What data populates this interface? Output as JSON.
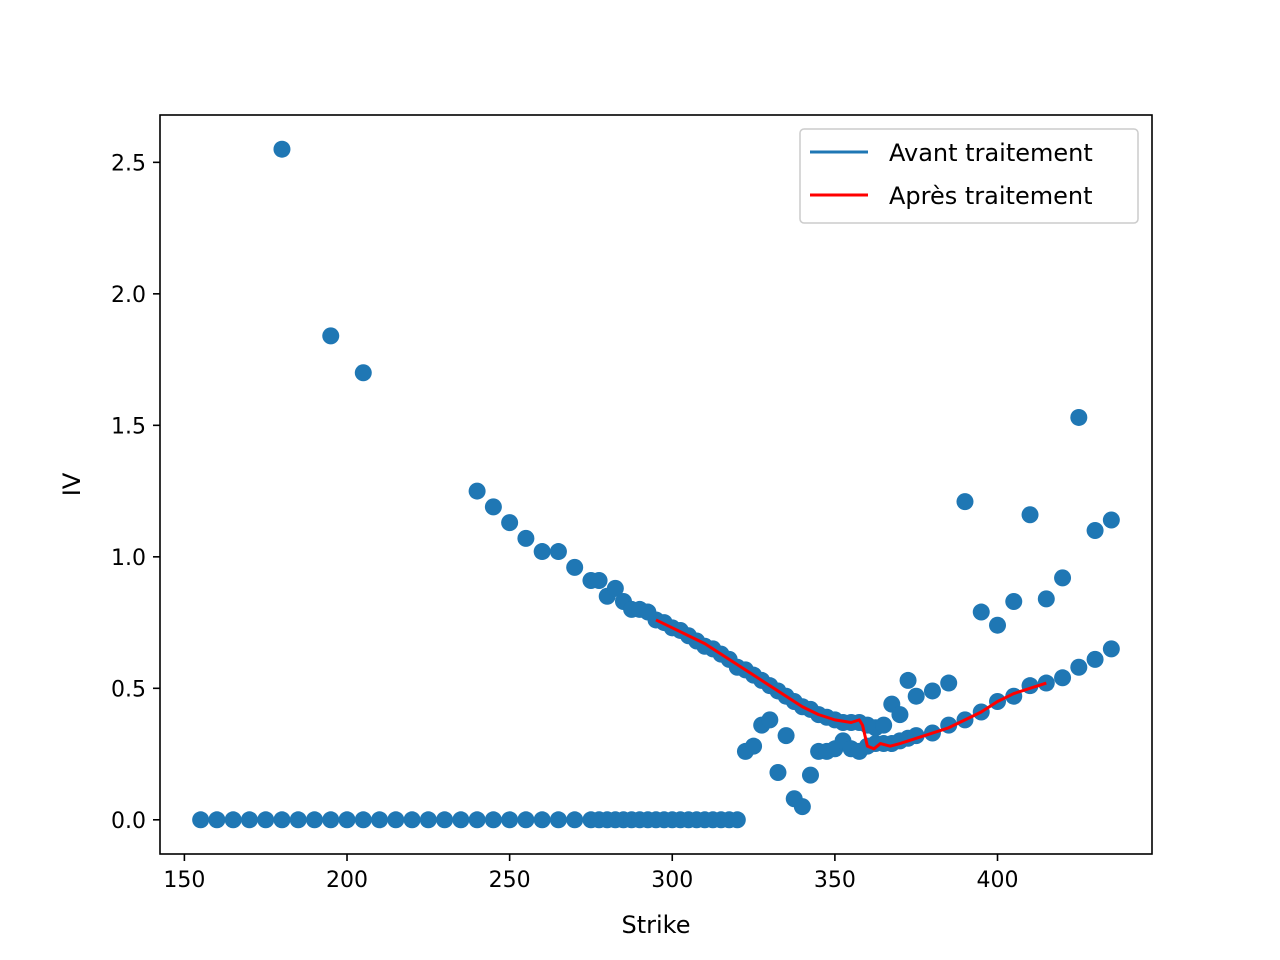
{
  "chart_data": {
    "type": "scatter",
    "xlabel": "Strike",
    "ylabel": "IV",
    "xlim": [
      142.5,
      447.5
    ],
    "ylim": [
      -0.13,
      2.68
    ],
    "x_ticks": [
      150,
      200,
      250,
      300,
      350,
      400
    ],
    "y_ticks": [
      0.0,
      0.5,
      1.0,
      1.5,
      2.0,
      2.5
    ],
    "x_tick_labels": [
      "150",
      "200",
      "250",
      "300",
      "350",
      "400"
    ],
    "y_tick_labels": [
      "0.0",
      "0.5",
      "1.0",
      "1.5",
      "2.0",
      "2.5"
    ],
    "grid": false,
    "legend_position": "top-right",
    "legend": [
      {
        "label": "Avant traitement",
        "color": "#1f77b4"
      },
      {
        "label": "Après traitement",
        "color": "#ff0000"
      }
    ],
    "scatter_color": "#1f77b4",
    "line_color": "#ff0000",
    "scatter_points": [
      [
        155,
        0
      ],
      [
        160,
        0
      ],
      [
        165,
        0
      ],
      [
        170,
        0
      ],
      [
        175,
        0
      ],
      [
        180,
        0
      ],
      [
        185,
        0
      ],
      [
        190,
        0
      ],
      [
        195,
        0
      ],
      [
        200,
        0
      ],
      [
        205,
        0
      ],
      [
        210,
        0
      ],
      [
        215,
        0
      ],
      [
        220,
        0
      ],
      [
        225,
        0
      ],
      [
        230,
        0
      ],
      [
        235,
        0
      ],
      [
        240,
        0
      ],
      [
        245,
        0
      ],
      [
        250,
        0
      ],
      [
        255,
        0
      ],
      [
        260,
        0
      ],
      [
        265,
        0
      ],
      [
        270,
        0
      ],
      [
        275,
        0
      ],
      [
        277.5,
        0
      ],
      [
        280,
        0
      ],
      [
        282.5,
        0
      ],
      [
        285,
        0
      ],
      [
        287.5,
        0
      ],
      [
        290,
        0
      ],
      [
        292.5,
        0
      ],
      [
        295,
        0
      ],
      [
        297.5,
        0
      ],
      [
        300,
        0
      ],
      [
        302.5,
        0
      ],
      [
        305,
        0
      ],
      [
        307.5,
        0
      ],
      [
        310,
        0
      ],
      [
        312.5,
        0
      ],
      [
        315,
        0
      ],
      [
        317.5,
        0
      ],
      [
        320,
        0
      ],
      [
        180,
        2.55
      ],
      [
        195,
        1.84
      ],
      [
        205,
        1.7
      ],
      [
        240,
        1.25
      ],
      [
        245,
        1.19
      ],
      [
        250,
        1.13
      ],
      [
        255,
        1.07
      ],
      [
        260,
        1.02
      ],
      [
        265,
        1.02
      ],
      [
        270,
        0.96
      ],
      [
        275,
        0.91
      ],
      [
        277.5,
        0.91
      ],
      [
        280,
        0.85
      ],
      [
        282.5,
        0.88
      ],
      [
        285,
        0.83
      ],
      [
        287.5,
        0.8
      ],
      [
        290,
        0.8
      ],
      [
        292.5,
        0.79
      ],
      [
        295,
        0.76
      ],
      [
        297.5,
        0.75
      ],
      [
        300,
        0.73
      ],
      [
        302.5,
        0.72
      ],
      [
        305,
        0.7
      ],
      [
        307.5,
        0.68
      ],
      [
        310,
        0.66
      ],
      [
        312.5,
        0.65
      ],
      [
        315,
        0.63
      ],
      [
        317.5,
        0.61
      ],
      [
        320,
        0.58
      ],
      [
        322.5,
        0.57
      ],
      [
        325,
        0.55
      ],
      [
        327.5,
        0.53
      ],
      [
        330,
        0.51
      ],
      [
        332.5,
        0.49
      ],
      [
        335,
        0.47
      ],
      [
        337.5,
        0.45
      ],
      [
        340,
        0.43
      ],
      [
        342.5,
        0.42
      ],
      [
        345,
        0.4
      ],
      [
        347.5,
        0.39
      ],
      [
        350,
        0.38
      ],
      [
        352.5,
        0.37
      ],
      [
        355,
        0.37
      ],
      [
        357.5,
        0.37
      ],
      [
        360,
        0.36
      ],
      [
        362.5,
        0.35
      ],
      [
        365,
        0.36
      ],
      [
        322.5,
        0.26
      ],
      [
        325,
        0.28
      ],
      [
        327.5,
        0.36
      ],
      [
        330,
        0.38
      ],
      [
        332.5,
        0.18
      ],
      [
        335,
        0.32
      ],
      [
        337.5,
        0.08
      ],
      [
        340,
        0.05
      ],
      [
        342.5,
        0.17
      ],
      [
        345,
        0.26
      ],
      [
        347.5,
        0.26
      ],
      [
        350,
        0.27
      ],
      [
        352.5,
        0.3
      ],
      [
        355,
        0.27
      ],
      [
        357.5,
        0.26
      ],
      [
        360,
        0.28
      ],
      [
        362.5,
        0.29
      ],
      [
        365,
        0.29
      ],
      [
        367.5,
        0.29
      ],
      [
        370,
        0.3
      ],
      [
        372.5,
        0.31
      ],
      [
        375,
        0.32
      ],
      [
        380,
        0.33
      ],
      [
        385,
        0.36
      ],
      [
        390,
        0.38
      ],
      [
        395,
        0.41
      ],
      [
        400,
        0.45
      ],
      [
        405,
        0.47
      ],
      [
        410,
        0.51
      ],
      [
        415,
        0.52
      ],
      [
        420,
        0.54
      ],
      [
        425,
        0.58
      ],
      [
        430,
        0.61
      ],
      [
        435,
        0.65
      ],
      [
        367.5,
        0.44
      ],
      [
        370,
        0.4
      ],
      [
        372.5,
        0.53
      ],
      [
        375,
        0.47
      ],
      [
        380,
        0.49
      ],
      [
        385,
        0.52
      ],
      [
        390,
        1.21
      ],
      [
        395,
        0.79
      ],
      [
        400,
        0.74
      ],
      [
        405,
        0.83
      ],
      [
        410,
        1.16
      ],
      [
        415,
        0.84
      ],
      [
        420,
        0.92
      ],
      [
        425,
        1.53
      ],
      [
        430,
        1.1
      ],
      [
        435,
        1.14
      ]
    ],
    "line_points": [
      [
        295,
        0.76
      ],
      [
        300,
        0.73
      ],
      [
        305,
        0.7
      ],
      [
        310,
        0.67
      ],
      [
        315,
        0.63
      ],
      [
        320,
        0.59
      ],
      [
        325,
        0.55
      ],
      [
        330,
        0.51
      ],
      [
        335,
        0.47
      ],
      [
        340,
        0.43
      ],
      [
        345,
        0.4
      ],
      [
        350,
        0.38
      ],
      [
        355,
        0.37
      ],
      [
        357.5,
        0.38
      ],
      [
        358.5,
        0.36
      ],
      [
        360,
        0.28
      ],
      [
        362,
        0.27
      ],
      [
        364,
        0.29
      ],
      [
        367,
        0.28
      ],
      [
        370,
        0.29
      ],
      [
        375,
        0.31
      ],
      [
        380,
        0.33
      ],
      [
        385,
        0.35
      ],
      [
        390,
        0.38
      ],
      [
        395,
        0.41
      ],
      [
        400,
        0.45
      ],
      [
        405,
        0.48
      ],
      [
        410,
        0.5
      ],
      [
        415,
        0.52
      ]
    ]
  }
}
